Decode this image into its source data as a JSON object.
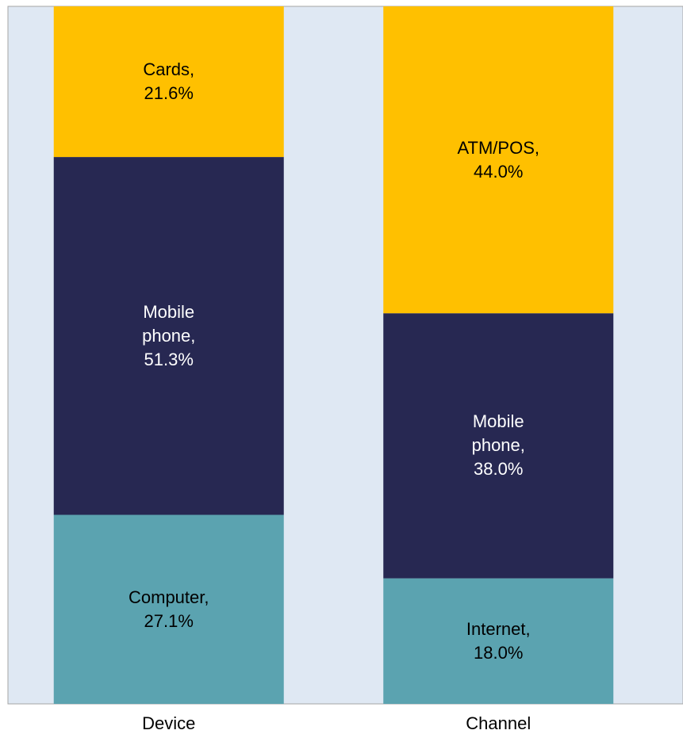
{
  "chart_data": {
    "type": "stacked_bar_100",
    "ylim": [
      0,
      100
    ],
    "bars": [
      {
        "category": "Device",
        "segments": [
          {
            "label": "Computer, 27.1%",
            "value": 27.1,
            "color": "#5ba3b0",
            "text_color": "#000000"
          },
          {
            "label": "Mobile phone, 51.3%",
            "value": 51.3,
            "color": "#272852",
            "text_color": "#ffffff"
          },
          {
            "label": "Cards, 21.6%",
            "value": 21.6,
            "color": "#ffc000",
            "text_color": "#000000"
          }
        ]
      },
      {
        "category": "Channel",
        "segments": [
          {
            "label": "Internet, 18.0%",
            "value": 18.0,
            "color": "#5ba3b0",
            "text_color": "#000000"
          },
          {
            "label": "Mobile phone, 38.0%",
            "value": 38.0,
            "color": "#272852",
            "text_color": "#ffffff"
          },
          {
            "label": "ATM/POS, 44.0%",
            "value": 44.0,
            "color": "#ffc000",
            "text_color": "#000000"
          }
        ]
      }
    ]
  }
}
